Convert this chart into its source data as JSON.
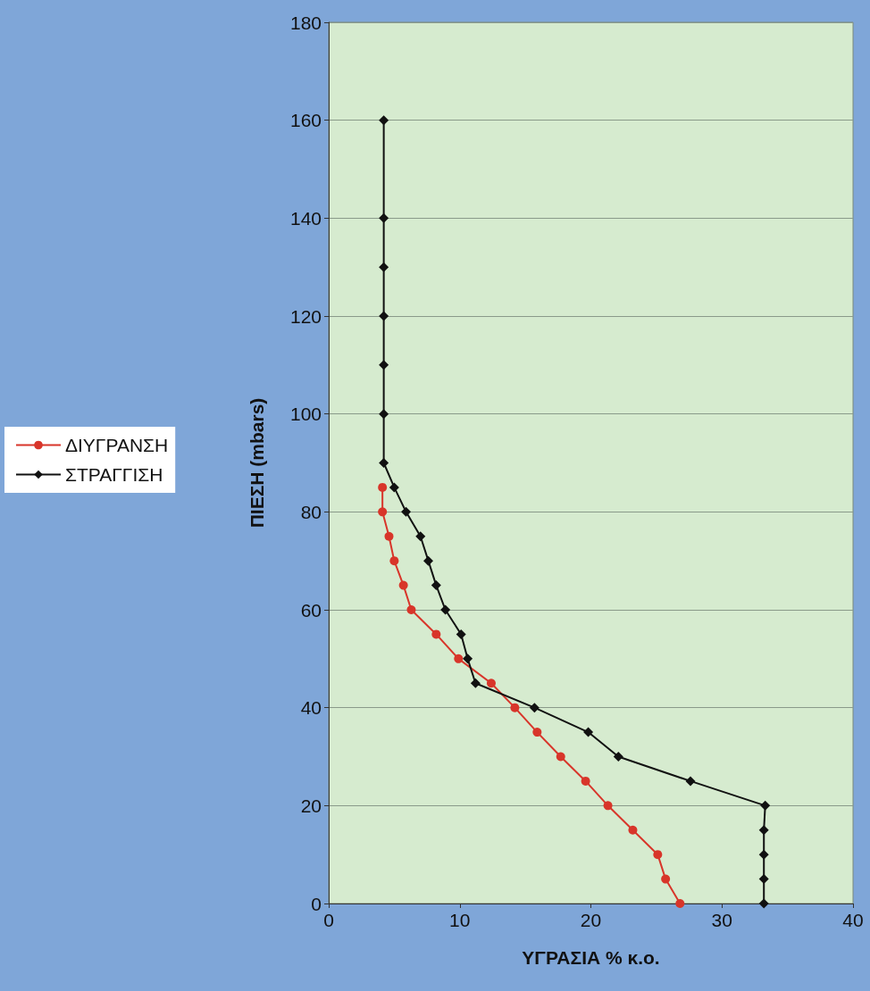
{
  "chart_data": {
    "type": "line",
    "xlabel": "ΥΓΡΑΣΙΑ % κ.ο.",
    "ylabel": "ΠΙΕΣΗ (mbars)",
    "xlim": [
      0,
      40
    ],
    "xticks": [
      0,
      10,
      20,
      30,
      40
    ],
    "ylim": [
      0,
      180
    ],
    "yticks": [
      0,
      20,
      40,
      60,
      80,
      100,
      120,
      140,
      160,
      180
    ],
    "grid": "y",
    "legend": "left",
    "series": [
      {
        "name": "ΔΙΥΓΡΑΝΣΗ",
        "color": "#d8352a",
        "marker": "circle",
        "x": [
          26.8,
          25.7,
          25.1,
          23.2,
          21.3,
          19.6,
          17.7,
          15.9,
          14.2,
          12.4,
          9.9,
          8.2,
          6.3,
          5.7,
          5.0,
          4.6,
          4.1,
          4.1
        ],
        "values": [
          0,
          5,
          10,
          15,
          20,
          25,
          30,
          35,
          40,
          45,
          50,
          55,
          60,
          65,
          70,
          75,
          80,
          85
        ]
      },
      {
        "name": "ΣΤΡΑΓΓΙΣΗ",
        "color": "#111111",
        "marker": "diamond",
        "x": [
          33.2,
          33.2,
          33.2,
          33.2,
          33.3,
          27.6,
          22.1,
          19.8,
          15.7,
          11.2,
          10.6,
          10.1,
          8.9,
          8.2,
          7.6,
          7.0,
          5.9,
          5.0,
          4.2,
          4.2,
          4.2,
          4.2,
          4.2,
          4.2,
          4.2
        ],
        "values": [
          0,
          5,
          10,
          15,
          20,
          25,
          30,
          35,
          40,
          45,
          50,
          55,
          60,
          65,
          70,
          75,
          80,
          85,
          90,
          100,
          110,
          120,
          130,
          140,
          160
        ]
      }
    ]
  }
}
